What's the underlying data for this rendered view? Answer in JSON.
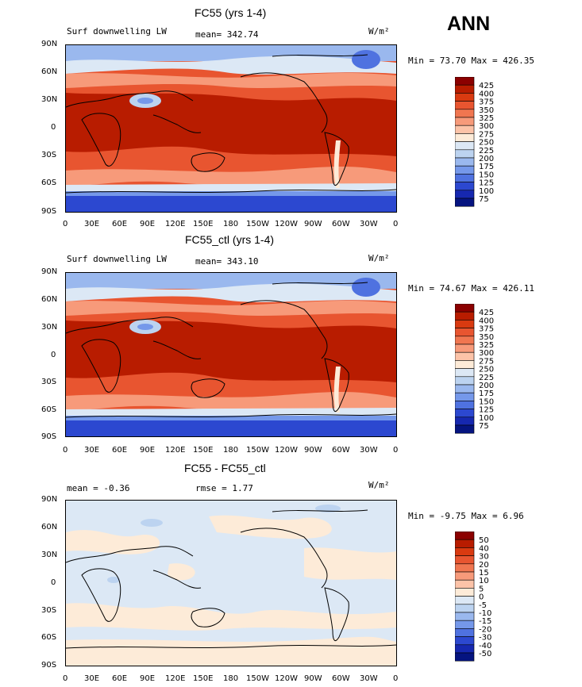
{
  "season": "ANN",
  "ylabels": [
    "90N",
    "60N",
    "30N",
    "0",
    "30S",
    "60S",
    "90S"
  ],
  "xlabels": [
    "0",
    "30E",
    "60E",
    "90E",
    "120E",
    "150E",
    "180",
    "150W",
    "120W",
    "90W",
    "60W",
    "30W",
    "0"
  ],
  "panels": [
    {
      "title": "FC55 (yrs 1-4)",
      "left_label": "Surf downwelling LW",
      "stat_label": "mean= 342.74",
      "stat2_label": "",
      "units": "W/m²",
      "minmax": "Min =  73.70 Max = 426.35",
      "colorbar": {
        "labels": [
          "425",
          "400",
          "375",
          "350",
          "325",
          "300",
          "275",
          "250",
          "225",
          "200",
          "175",
          "150",
          "125",
          "100",
          "75"
        ],
        "colors": [
          "#8b0000",
          "#b81c00",
          "#d93a10",
          "#e85530",
          "#f07650",
          "#f79a7a",
          "#fcc3a8",
          "#fdebd8",
          "#dce8f5",
          "#bcd3f0",
          "#9ab8ee",
          "#7598ea",
          "#4f72e0",
          "#2c48d0",
          "#1628b0",
          "#051480"
        ]
      }
    },
    {
      "title": "FC55_ctl (yrs 1-4)",
      "left_label": "Surf downwelling LW",
      "stat_label": "mean= 343.10",
      "stat2_label": "",
      "units": "W/m²",
      "minmax": "Min =  74.67 Max = 426.11",
      "colorbar": {
        "labels": [
          "425",
          "400",
          "375",
          "350",
          "325",
          "300",
          "275",
          "250",
          "225",
          "200",
          "175",
          "150",
          "125",
          "100",
          "75"
        ],
        "colors": [
          "#8b0000",
          "#b81c00",
          "#d93a10",
          "#e85530",
          "#f07650",
          "#f79a7a",
          "#fcc3a8",
          "#fdebd8",
          "#dce8f5",
          "#bcd3f0",
          "#9ab8ee",
          "#7598ea",
          "#4f72e0",
          "#2c48d0",
          "#1628b0",
          "#051480"
        ]
      }
    },
    {
      "title": "FC55 - FC55_ctl",
      "left_label": "mean =  -0.36",
      "stat_label": "rmse =   1.77",
      "stat2_label": "",
      "units": "W/m²",
      "minmax": "Min =  -9.75 Max =   6.96",
      "colorbar": {
        "labels": [
          "50",
          "40",
          "30",
          "20",
          "15",
          "10",
          "5",
          "0",
          "-5",
          "-10",
          "-15",
          "-20",
          "-30",
          "-40",
          "-50"
        ],
        "colors": [
          "#8b0000",
          "#b81c00",
          "#d93a10",
          "#e85530",
          "#f07650",
          "#f79a7a",
          "#fcc3a8",
          "#fdebd8",
          "#dce8f5",
          "#bcd3f0",
          "#9ab8ee",
          "#7598ea",
          "#4f72e0",
          "#2c48d0",
          "#1628b0",
          "#051480"
        ]
      }
    }
  ]
}
